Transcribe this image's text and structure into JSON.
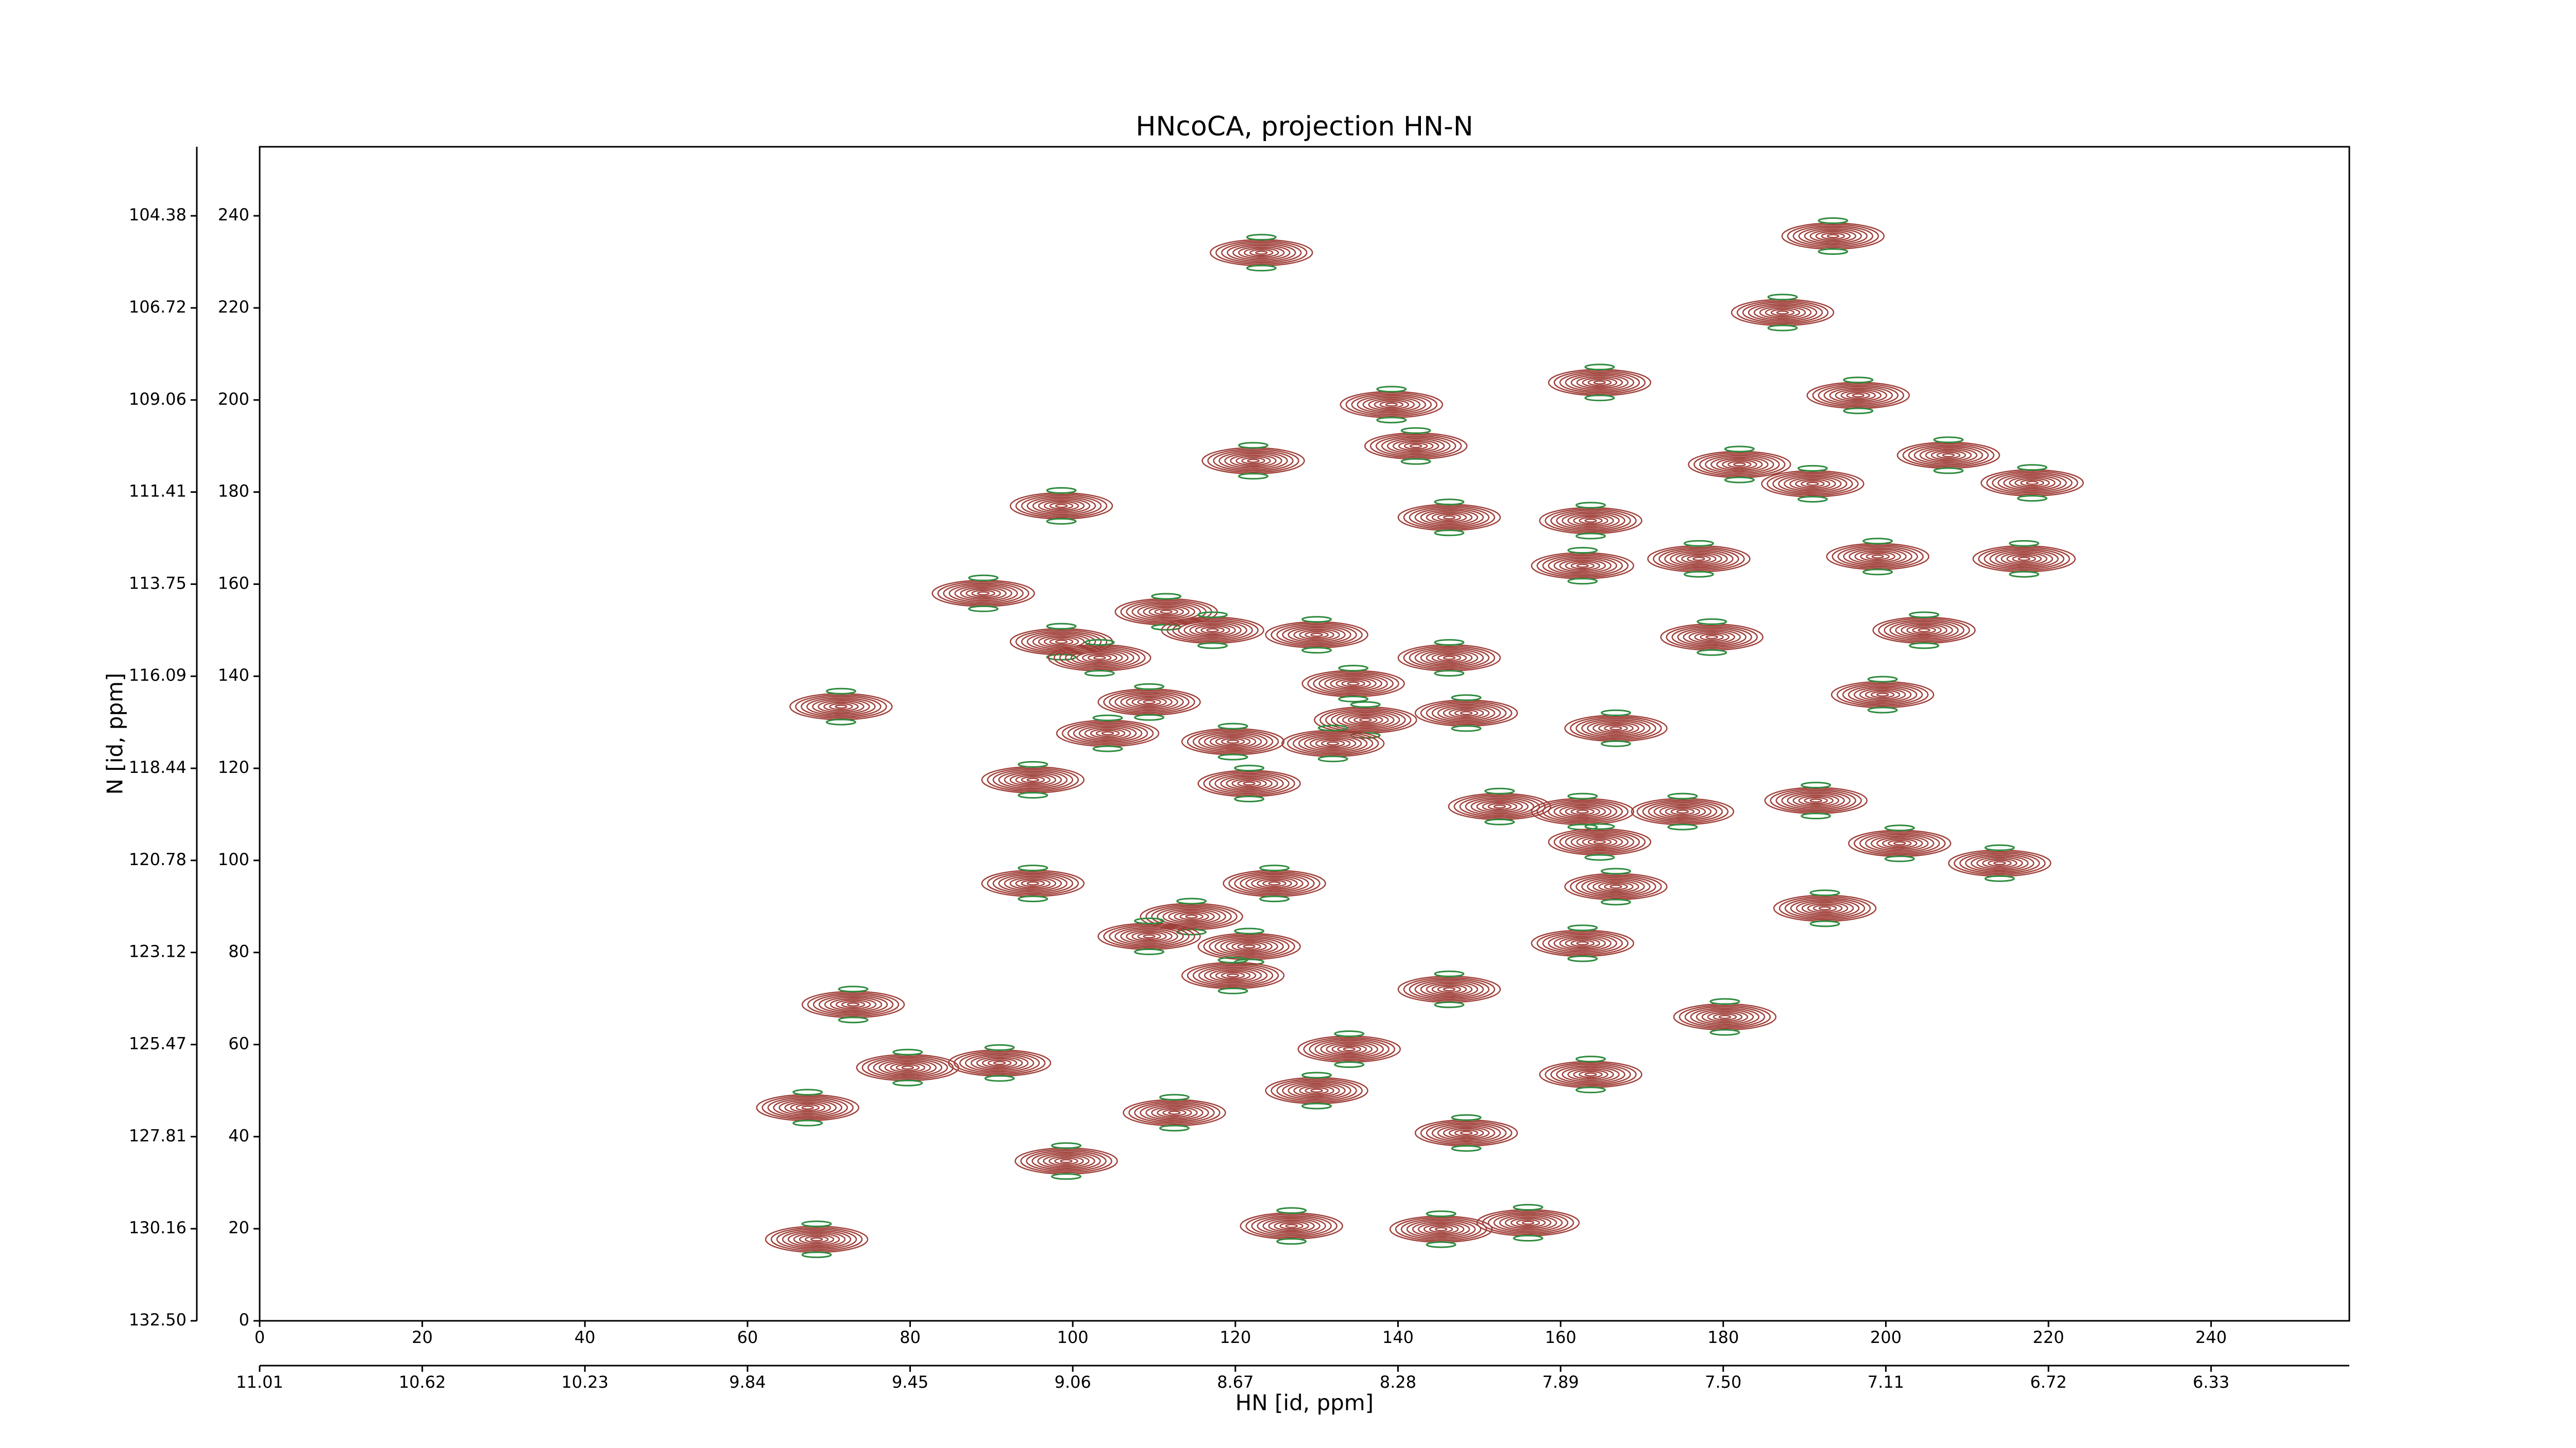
{
  "chart_data": {
    "type": "contour",
    "title": "HNcoCA, projection HN-N",
    "xlabel": "HN [id, ppm]",
    "ylabel": "N [id, ppm]",
    "xlim": [
      0,
      257
    ],
    "ylim": [
      0,
      255
    ],
    "xticks": [
      0,
      20,
      40,
      60,
      80,
      100,
      120,
      140,
      160,
      180,
      200,
      220,
      240
    ],
    "yticks": [
      0,
      20,
      40,
      60,
      80,
      100,
      120,
      140,
      160,
      180,
      200,
      220,
      240
    ],
    "x2ticks": [
      {
        "value": 0,
        "label": "11.01"
      },
      {
        "value": 20,
        "label": "10.62"
      },
      {
        "value": 40,
        "label": "10.23"
      },
      {
        "value": 60,
        "label": "9.84"
      },
      {
        "value": 80,
        "label": "9.45"
      },
      {
        "value": 100,
        "label": "9.06"
      },
      {
        "value": 120,
        "label": "8.67"
      },
      {
        "value": 140,
        "label": "8.28"
      },
      {
        "value": 160,
        "label": "7.89"
      },
      {
        "value": 180,
        "label": "7.50"
      },
      {
        "value": 200,
        "label": "7.11"
      },
      {
        "value": 220,
        "label": "6.72"
      },
      {
        "value": 240,
        "label": "6.33"
      }
    ],
    "y2ticks": [
      {
        "value": 0,
        "label": "132.50"
      },
      {
        "value": 20,
        "label": "130.16"
      },
      {
        "value": 40,
        "label": "127.81"
      },
      {
        "value": 60,
        "label": "125.47"
      },
      {
        "value": 80,
        "label": "123.12"
      },
      {
        "value": 100,
        "label": "120.78"
      },
      {
        "value": 120,
        "label": "118.44"
      },
      {
        "value": 140,
        "label": "116.09"
      },
      {
        "value": 160,
        "label": "113.75"
      },
      {
        "value": 180,
        "label": "111.41"
      },
      {
        "value": 200,
        "label": "109.06"
      },
      {
        "value": 220,
        "label": "106.72"
      },
      {
        "value": 240,
        "label": "104.38"
      }
    ],
    "color": "#a0403a",
    "neg_color": "#2e8b3e",
    "x": [
      123.2,
      193.5,
      187.3,
      164.8,
      196.6,
      139.2,
      142.2,
      122.2,
      98.6,
      191,
      217,
      162.7,
      177,
      89,
      111.5,
      117.2,
      130,
      204.7,
      98.6,
      103.3,
      146.3,
      134.5,
      199.6,
      71.5,
      109.4,
      148.4,
      136,
      166.8,
      104.3,
      119.7,
      132,
      95.1,
      121.7,
      191.4,
      162.7,
      175,
      152.5,
      201.7,
      214,
      164.8,
      95.1,
      124.8,
      166.8,
      114.6,
      192.5,
      109.4,
      121.7,
      162.7,
      146.3,
      119.7,
      134,
      79.7,
      91,
      130,
      112.5,
      148.4,
      67.4,
      99.2,
      68.5,
      126.9,
      73,
      180.2,
      163.7,
      146.3,
      163.7,
      218,
      207.7,
      199,
      178.6,
      156,
      145.3,
      182
    ],
    "y": [
      232,
      235.6,
      219,
      203.8,
      201,
      199,
      190,
      186.8,
      177,
      181.8,
      165.5,
      164,
      165.5,
      158,
      154,
      150,
      149,
      150,
      147.5,
      144,
      144,
      138.4,
      136,
      133.4,
      134.4,
      132,
      130.5,
      128.7,
      127.6,
      125.8,
      125.4,
      117.5,
      116.7,
      113,
      110.6,
      110.6,
      111.7,
      103.7,
      99.4,
      104,
      95,
      95,
      94.3,
      87.8,
      89.6,
      83.5,
      81.3,
      82,
      72,
      75,
      59,
      55,
      56,
      50,
      45.2,
      40.8,
      46.3,
      34.7,
      17.7,
      20.6,
      68.7,
      66,
      53.5,
      174.5,
      173.8,
      182,
      188,
      166,
      148.5,
      21.3,
      19.9,
      186
    ]
  }
}
